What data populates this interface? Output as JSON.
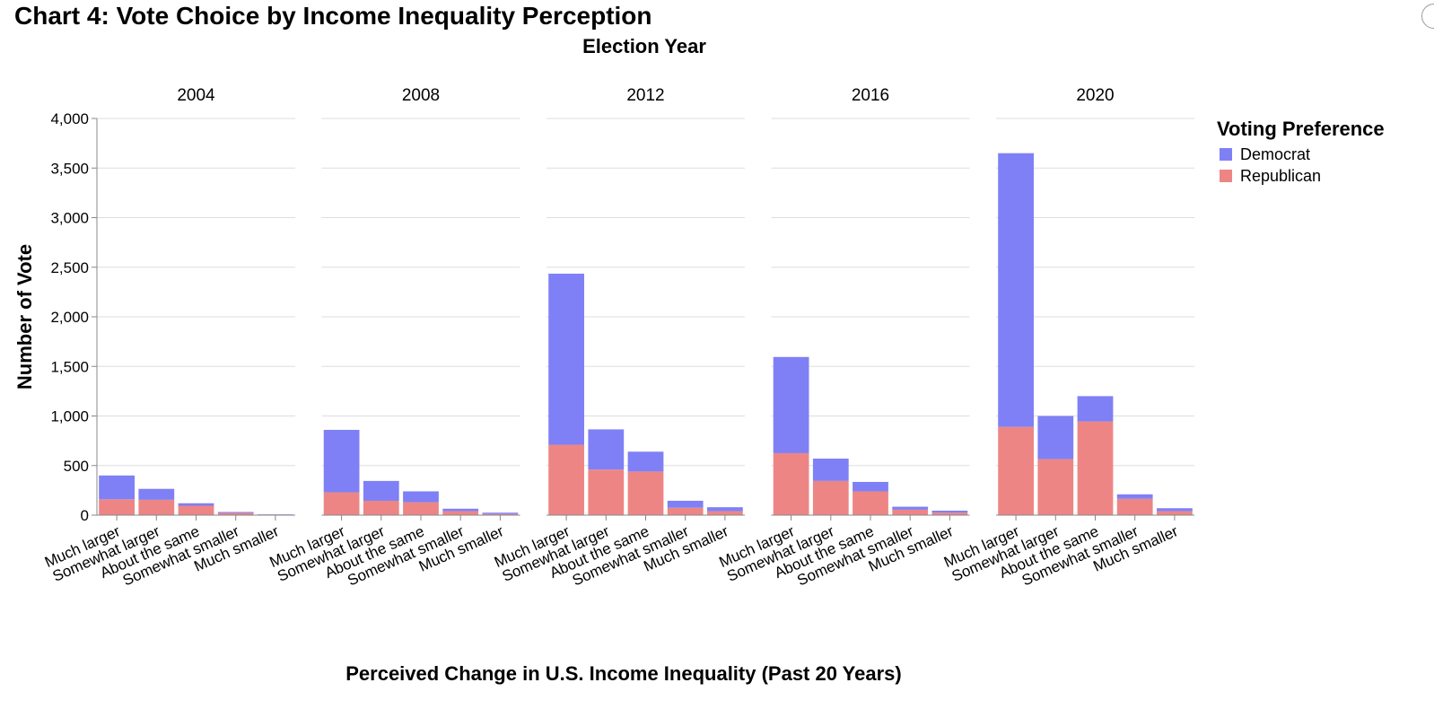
{
  "title": "Chart 4: Vote Choice by Income Inequality Perception",
  "colors": {
    "Democrat": "#7f80f5",
    "Republican": "#ee8585",
    "grid": "#dddddd",
    "axis": "#888888"
  },
  "chart_data": {
    "type": "bar",
    "stacked": true,
    "facet_label": "Election Year",
    "facets": [
      "2004",
      "2008",
      "2012",
      "2016",
      "2020"
    ],
    "categories": [
      "Much larger",
      "Somewhat larger",
      "About the same",
      "Somewhat smaller",
      "Much smaller"
    ],
    "xlabel": "Perceived Change in U.S. Income Inequality (Past 20 Years)",
    "ylabel": "Number of Vote",
    "ylim": [
      0,
      4000
    ],
    "yticks": [
      0,
      500,
      1000,
      1500,
      2000,
      2500,
      3000,
      3500,
      4000
    ],
    "ytick_labels": [
      "0",
      "500",
      "1,000",
      "1,500",
      "2,000",
      "2,500",
      "3,000",
      "3,500",
      "4,000"
    ],
    "grid": true,
    "legend": {
      "title": "Voting Preference",
      "placement": "top-right",
      "entries": [
        "Democrat",
        "Republican"
      ]
    },
    "series_order": [
      "Republican",
      "Democrat"
    ],
    "data": {
      "2004": {
        "Republican": [
          160,
          155,
          95,
          22,
          5
        ],
        "Democrat": [
          240,
          110,
          25,
          10,
          3
        ]
      },
      "2008": {
        "Republican": [
          230,
          145,
          130,
          40,
          12
        ],
        "Democrat": [
          630,
          200,
          110,
          25,
          13
        ]
      },
      "2012": {
        "Republican": [
          710,
          460,
          440,
          75,
          40
        ],
        "Democrat": [
          1725,
          405,
          200,
          70,
          40
        ]
      },
      "2016": {
        "Republican": [
          625,
          345,
          240,
          55,
          25
        ],
        "Democrat": [
          970,
          225,
          95,
          30,
          20
        ]
      },
      "2020": {
        "Republican": [
          890,
          565,
          945,
          165,
          40
        ],
        "Democrat": [
          2760,
          435,
          255,
          45,
          30
        ]
      }
    }
  }
}
